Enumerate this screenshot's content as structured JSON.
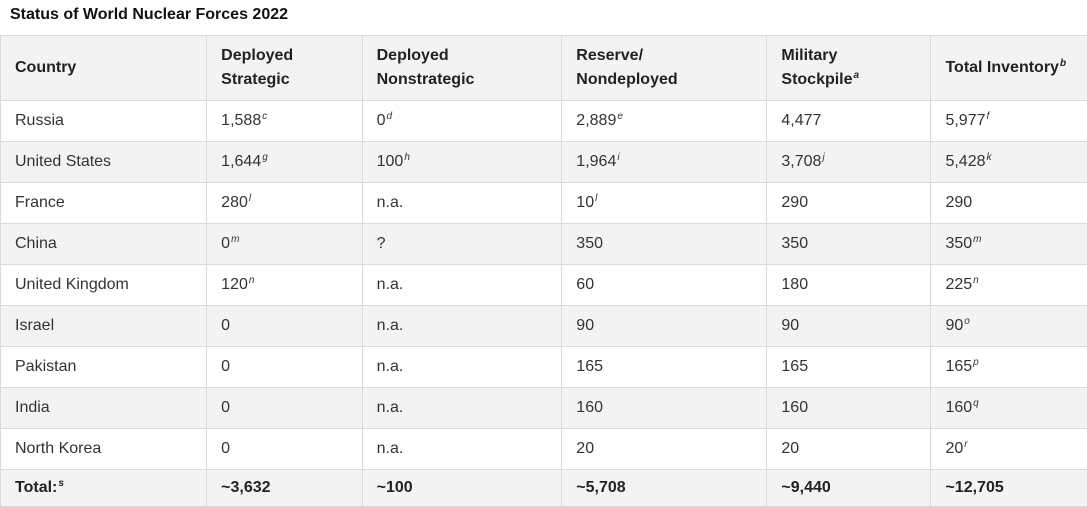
{
  "title": "Status of World Nuclear Forces 2022",
  "headers": [
    {
      "line1": "Country",
      "line2": "",
      "sup": ""
    },
    {
      "line1": "Deployed",
      "line2": "Strategic",
      "sup": ""
    },
    {
      "line1": "Deployed",
      "line2": "Nonstrategic",
      "sup": ""
    },
    {
      "line1": "Reserve/",
      "line2": "Nondeployed",
      "sup": ""
    },
    {
      "line1": "Military",
      "line2": "Stockpile",
      "sup": "a"
    },
    {
      "line1": "Total Inventory",
      "line2": "",
      "sup": "b"
    }
  ],
  "rows": [
    [
      {
        "v": "Russia",
        "s": ""
      },
      {
        "v": "1,588",
        "s": "c"
      },
      {
        "v": "0",
        "s": "d"
      },
      {
        "v": "2,889",
        "s": "e"
      },
      {
        "v": "4,477",
        "s": ""
      },
      {
        "v": "5,977",
        "s": "f"
      }
    ],
    [
      {
        "v": "United States",
        "s": ""
      },
      {
        "v": "1,644",
        "s": "g"
      },
      {
        "v": "100",
        "s": "h"
      },
      {
        "v": "1,964",
        "s": "i"
      },
      {
        "v": "3,708",
        "s": "j"
      },
      {
        "v": "5,428",
        "s": "k"
      }
    ],
    [
      {
        "v": "France",
        "s": ""
      },
      {
        "v": "280",
        "s": "l"
      },
      {
        "v": "n.a.",
        "s": ""
      },
      {
        "v": "10",
        "s": "l"
      },
      {
        "v": "290",
        "s": ""
      },
      {
        "v": "290",
        "s": ""
      }
    ],
    [
      {
        "v": "China",
        "s": ""
      },
      {
        "v": "0",
        "s": "m"
      },
      {
        "v": "?",
        "s": ""
      },
      {
        "v": "350",
        "s": ""
      },
      {
        "v": "350",
        "s": ""
      },
      {
        "v": "350",
        "s": "m"
      }
    ],
    [
      {
        "v": "United Kingdom",
        "s": ""
      },
      {
        "v": "120",
        "s": "n"
      },
      {
        "v": "n.a.",
        "s": ""
      },
      {
        "v": "60",
        "s": ""
      },
      {
        "v": "180",
        "s": ""
      },
      {
        "v": "225",
        "s": "n"
      }
    ],
    [
      {
        "v": "Israel",
        "s": ""
      },
      {
        "v": "0",
        "s": ""
      },
      {
        "v": "n.a.",
        "s": ""
      },
      {
        "v": "90",
        "s": ""
      },
      {
        "v": "90",
        "s": ""
      },
      {
        "v": "90",
        "s": "o"
      }
    ],
    [
      {
        "v": "Pakistan",
        "s": ""
      },
      {
        "v": "0",
        "s": ""
      },
      {
        "v": "n.a.",
        "s": ""
      },
      {
        "v": "165",
        "s": ""
      },
      {
        "v": "165",
        "s": ""
      },
      {
        "v": "165",
        "s": "p"
      }
    ],
    [
      {
        "v": "India",
        "s": ""
      },
      {
        "v": "0",
        "s": ""
      },
      {
        "v": "n.a.",
        "s": ""
      },
      {
        "v": "160",
        "s": ""
      },
      {
        "v": "160",
        "s": ""
      },
      {
        "v": "160",
        "s": "q"
      }
    ],
    [
      {
        "v": "North Korea",
        "s": ""
      },
      {
        "v": "0",
        "s": ""
      },
      {
        "v": "n.a.",
        "s": ""
      },
      {
        "v": "20",
        "s": ""
      },
      {
        "v": "20",
        "s": ""
      },
      {
        "v": "20",
        "s": "r"
      }
    ]
  ],
  "total": [
    {
      "v": "Total:",
      "s": "s"
    },
    {
      "v": "~3,632",
      "s": ""
    },
    {
      "v": "~100",
      "s": ""
    },
    {
      "v": "~5,708",
      "s": ""
    },
    {
      "v": "~9,440",
      "s": ""
    },
    {
      "v": "~12,705",
      "s": ""
    }
  ]
}
